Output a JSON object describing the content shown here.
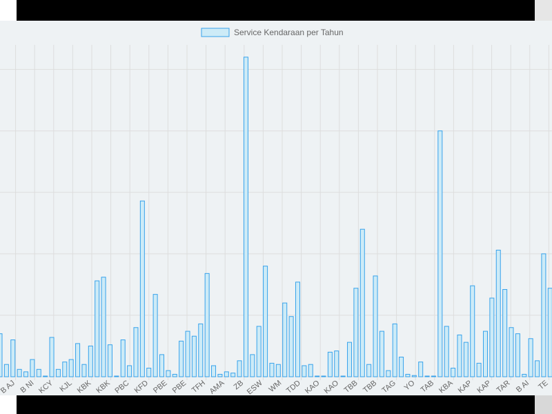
{
  "chart_data": {
    "type": "bar",
    "legend": {
      "label": "Service Kendaraan per Tahun",
      "position": "top"
    },
    "colors": {
      "fill": "#cdebf7",
      "stroke": "#36a2eb",
      "grid": "#dddddd",
      "background": "#eef2f4"
    },
    "grid": true,
    "ylim": [
      0,
      270
    ],
    "tick_labels": [
      "B AJ",
      "B NI",
      "KCY",
      "KJL",
      "KBK",
      "KBK",
      "PBC",
      "KFD",
      "PBE",
      "PBE",
      "TFH",
      "AMA",
      "ZB",
      "ESW",
      "WM",
      "TDD",
      "KAO",
      "KAO",
      "TBB",
      "TBB",
      "TAG",
      "YO",
      "TAB",
      "KBA",
      "KAP",
      "KAP",
      "TAR",
      "B AI",
      "TE"
    ],
    "values": [
      35,
      10,
      30,
      6,
      4,
      14,
      6,
      0,
      32,
      6,
      12,
      14,
      27,
      10,
      25,
      78,
      81,
      26,
      0,
      30,
      9,
      40,
      143,
      7,
      67,
      18,
      5,
      2,
      29,
      37,
      33,
      43,
      84,
      9,
      2,
      4,
      3,
      13,
      260,
      18,
      41,
      90,
      11,
      10,
      60,
      49,
      77,
      9,
      10,
      0,
      0,
      20,
      21,
      0,
      28,
      72,
      120,
      10,
      82,
      37,
      5,
      43,
      16,
      2,
      1,
      12,
      0,
      0,
      200,
      41,
      7,
      34,
      28,
      74,
      11,
      37,
      64,
      103,
      71,
      40,
      35,
      2,
      31,
      13,
      100,
      72
    ]
  }
}
